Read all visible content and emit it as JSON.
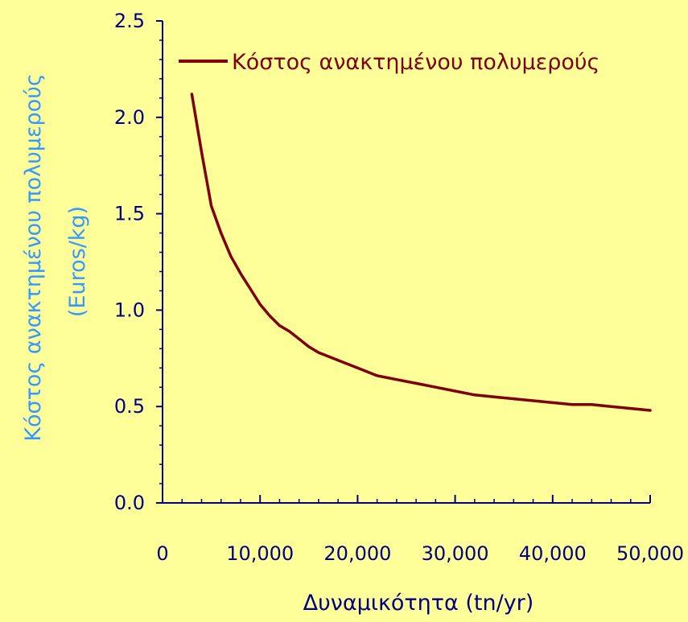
{
  "chart_data": {
    "type": "line",
    "title": "",
    "xlabel": "Δυναμικότητα (tn/yr)",
    "ylabel_line1": "Κόστος ανακτημένου πολυμερούς",
    "ylabel_line2": "(Euros/kg)",
    "xlim": [
      0,
      50000
    ],
    "ylim": [
      0,
      2.5
    ],
    "x_ticks": [
      0,
      10000,
      20000,
      30000,
      40000,
      50000
    ],
    "x_tick_labels": [
      "0",
      "10,000",
      "20,000",
      "30,000",
      "40,000",
      "50,000"
    ],
    "y_ticks": [
      0,
      0.5,
      1.0,
      1.5,
      2.0,
      2.5
    ],
    "y_tick_labels": [
      "0.0",
      "0.5",
      "1.0",
      "1.5",
      "2.0",
      "2.5"
    ],
    "grid": false,
    "legend_position": "top-right",
    "series": [
      {
        "name": "Κόστος ανακτημένου πολυμερούς",
        "color": "#800000",
        "x": [
          3000,
          4000,
          5000,
          6000,
          7000,
          8000,
          9000,
          10000,
          11000,
          12000,
          13000,
          14000,
          15000,
          16000,
          18000,
          20000,
          22000,
          24000,
          26000,
          28000,
          30000,
          32000,
          34000,
          36000,
          38000,
          40000,
          42000,
          44000,
          46000,
          48000,
          50000
        ],
        "y": [
          2.12,
          1.82,
          1.54,
          1.4,
          1.28,
          1.19,
          1.11,
          1.03,
          0.97,
          0.92,
          0.89,
          0.85,
          0.81,
          0.78,
          0.74,
          0.7,
          0.66,
          0.64,
          0.62,
          0.6,
          0.58,
          0.56,
          0.55,
          0.54,
          0.53,
          0.52,
          0.51,
          0.51,
          0.5,
          0.49,
          0.48
        ]
      }
    ]
  },
  "colors": {
    "background": "#FFFF99",
    "axis": "#000080",
    "tick_label": "#000080",
    "y_title": "#3399FF",
    "x_title": "#000080",
    "legend_text": "#800000"
  }
}
